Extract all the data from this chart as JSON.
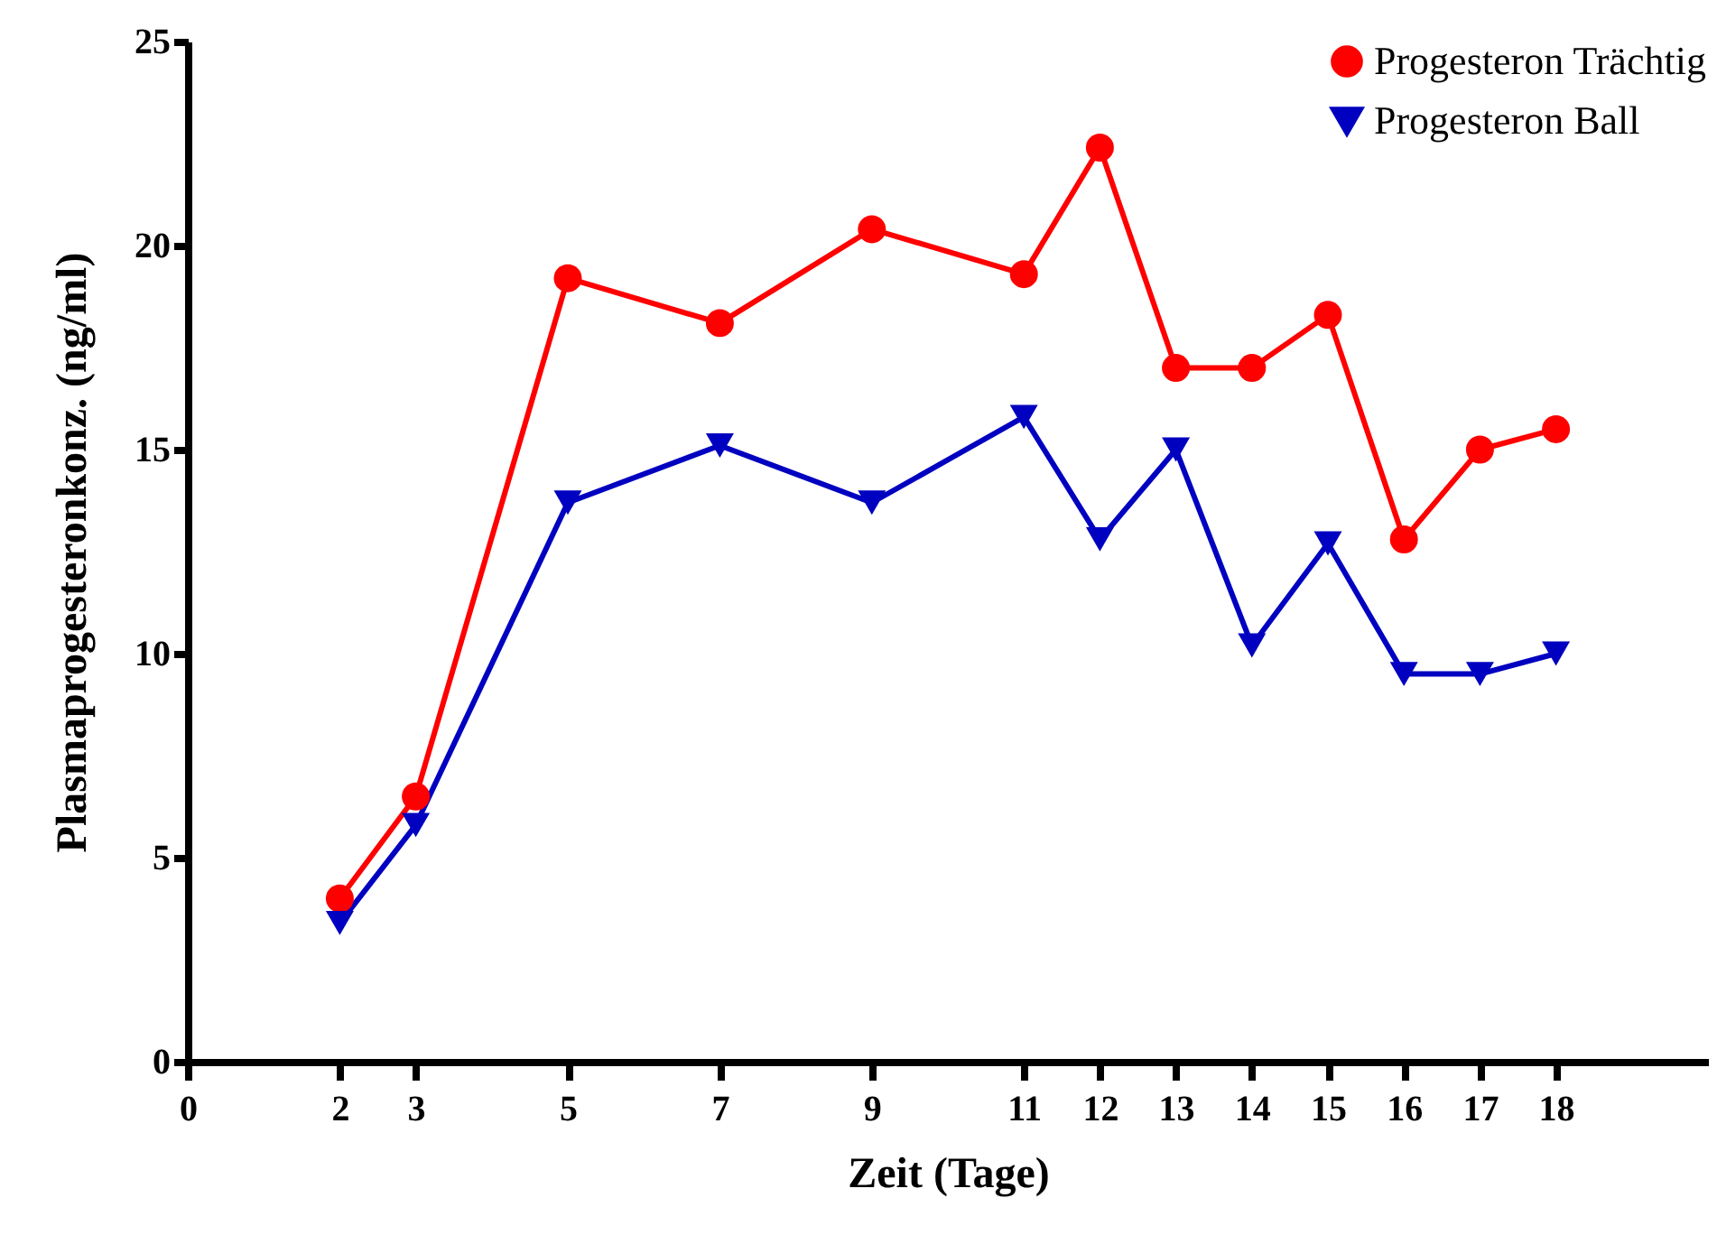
{
  "chart_data": {
    "type": "line",
    "xlabel": "Zeit (Tage)",
    "ylabel": "Plasmaprogesteronkonz. (ng/ml)",
    "x": [
      2,
      3,
      5,
      7,
      9,
      11,
      12,
      13,
      14,
      15,
      16,
      17,
      18
    ],
    "series": [
      {
        "name": "Progesteron Trächtig",
        "color": "#ff0000",
        "marker": "circle",
        "values": [
          4.0,
          6.5,
          19.2,
          18.1,
          20.4,
          19.3,
          22.4,
          17.0,
          17.0,
          18.3,
          12.8,
          15.0,
          15.5
        ]
      },
      {
        "name": "Progesteron Ball",
        "color": "#0000c0",
        "marker": "triangle-down",
        "values": [
          3.4,
          5.8,
          13.7,
          15.1,
          13.7,
          15.8,
          12.8,
          15.0,
          10.2,
          12.7,
          9.5,
          9.5,
          10.0
        ]
      }
    ],
    "xlim": [
      0,
      20
    ],
    "xticks": [
      0,
      2,
      3,
      5,
      7,
      9,
      11,
      12,
      13,
      14,
      15,
      16,
      17,
      18
    ],
    "ylim": [
      0,
      25
    ],
    "yticks": [
      0,
      5,
      10,
      15,
      20,
      25
    ],
    "grid": false,
    "legend": "top right",
    "line_style": "solid"
  }
}
